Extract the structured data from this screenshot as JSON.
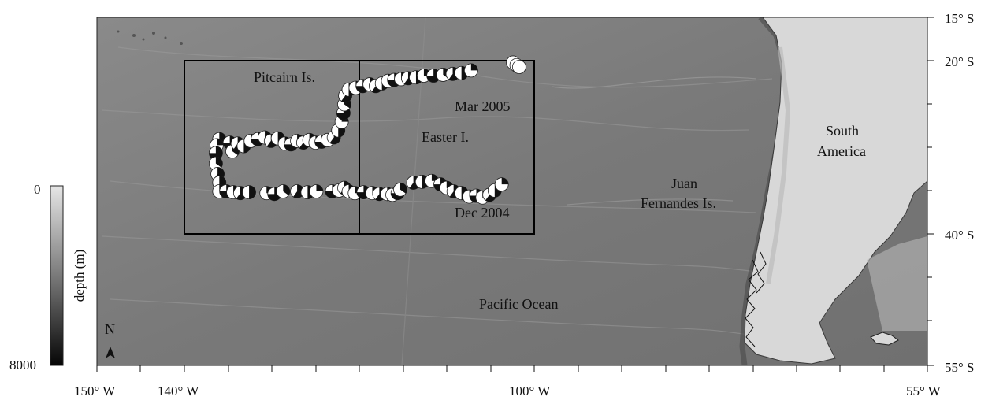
{
  "map": {
    "labels": {
      "pitcairn": "Pitcairn Is.",
      "easter": "Easter I.",
      "juan_1": "Juan",
      "juan_2": "Fernandes Is.",
      "south_america_1": "South",
      "south_america_2": "America",
      "pacific": "Pacific Ocean",
      "mar2005": "Mar 2005",
      "dec2004": "Dec 2004",
      "north": "N"
    },
    "lon_ticks": [
      "150° W",
      "140° W",
      "100° W",
      "55° W"
    ],
    "lat_ticks": [
      "15° S",
      "20° S",
      "40° S",
      "55° S"
    ],
    "depth_scale": {
      "label": "depth (m)",
      "min_label": "0",
      "max_label": "8000"
    },
    "colors": {
      "ocean": "#7d7d7d",
      "land": "#d9d9d9",
      "marker_fill": "#ffffff",
      "marker_dark": "#111111",
      "box": "#000000"
    },
    "track": {
      "mar_2005": [
        [
          -134.8,
          -29.4
        ],
        [
          -134.5,
          -30.4
        ],
        [
          -133.9,
          -29.5
        ],
        [
          -133.2,
          -29.8
        ],
        [
          -132.4,
          -29.2
        ],
        [
          -131.6,
          -29.0
        ],
        [
          -130.8,
          -28.8
        ],
        [
          -130.1,
          -29.2
        ],
        [
          -129.3,
          -28.9
        ],
        [
          -128.5,
          -29.5
        ],
        [
          -127.8,
          -29.6
        ],
        [
          -127.1,
          -29.2
        ],
        [
          -126.4,
          -29.4
        ],
        [
          -125.7,
          -29.1
        ],
        [
          -125.0,
          -29.4
        ],
        [
          -124.3,
          -29.3
        ],
        [
          -123.6,
          -29.1
        ],
        [
          -122.9,
          -28.8
        ],
        [
          -122.4,
          -28.0
        ],
        [
          -122.0,
          -27.0
        ],
        [
          -121.8,
          -26.0
        ],
        [
          -121.7,
          -25.0
        ],
        [
          -121.6,
          -24.0
        ],
        [
          -121.2,
          -23.3
        ],
        [
          -120.4,
          -23.1
        ],
        [
          -119.6,
          -22.9
        ],
        [
          -118.8,
          -22.7
        ],
        [
          -118.1,
          -22.9
        ],
        [
          -117.4,
          -22.6
        ],
        [
          -116.7,
          -22.3
        ],
        [
          -116.0,
          -22.2
        ],
        [
          -115.2,
          -22.1
        ],
        [
          -114.4,
          -22.0
        ],
        [
          -113.5,
          -21.9
        ],
        [
          -112.6,
          -21.7
        ],
        [
          -111.5,
          -21.7
        ],
        [
          -110.4,
          -21.6
        ],
        [
          -109.3,
          -21.5
        ],
        [
          -108.3,
          -21.4
        ],
        [
          -107.2,
          -21.1
        ],
        [
          -102.4,
          -20.2
        ],
        [
          -102.0,
          -20.5
        ],
        [
          -101.7,
          -20.7
        ]
      ],
      "transit": [
        [
          -136.0,
          -29.0
        ],
        [
          -136.3,
          -29.7
        ],
        [
          -136.4,
          -30.6
        ],
        [
          -136.4,
          -31.8
        ],
        [
          -136.2,
          -33.0
        ],
        [
          -136.0,
          -34.0
        ]
      ],
      "dec_2004": [
        [
          -136.0,
          -35.0
        ],
        [
          -135.2,
          -35.0
        ],
        [
          -134.4,
          -35.1
        ],
        [
          -133.6,
          -35.2
        ],
        [
          -132.6,
          -35.1
        ],
        [
          -130.6,
          -35.2
        ],
        [
          -129.7,
          -35.3
        ],
        [
          -128.7,
          -35.0
        ],
        [
          -127.1,
          -35.0
        ],
        [
          -125.9,
          -35.1
        ],
        [
          -124.9,
          -35.0
        ],
        [
          -123.1,
          -35.0
        ],
        [
          -122.3,
          -34.9
        ],
        [
          -121.7,
          -34.6
        ],
        [
          -121.2,
          -35.0
        ],
        [
          -120.5,
          -35.2
        ],
        [
          -119.5,
          -35.1
        ],
        [
          -118.5,
          -35.2
        ],
        [
          -117.7,
          -35.3
        ],
        [
          -116.8,
          -35.3
        ],
        [
          -116.2,
          -35.4
        ],
        [
          -115.6,
          -35.2
        ],
        [
          -115.3,
          -34.8
        ],
        [
          -113.8,
          -34.0
        ],
        [
          -112.8,
          -33.9
        ],
        [
          -111.7,
          -33.8
        ],
        [
          -110.7,
          -34.2
        ],
        [
          -110.0,
          -34.6
        ],
        [
          -109.2,
          -35.0
        ],
        [
          -108.3,
          -35.2
        ],
        [
          -107.4,
          -35.6
        ],
        [
          -106.6,
          -35.5
        ],
        [
          -105.9,
          -35.7
        ],
        [
          -105.1,
          -35.4
        ],
        [
          -104.5,
          -34.9
        ],
        [
          -103.7,
          -34.2
        ]
      ]
    }
  }
}
